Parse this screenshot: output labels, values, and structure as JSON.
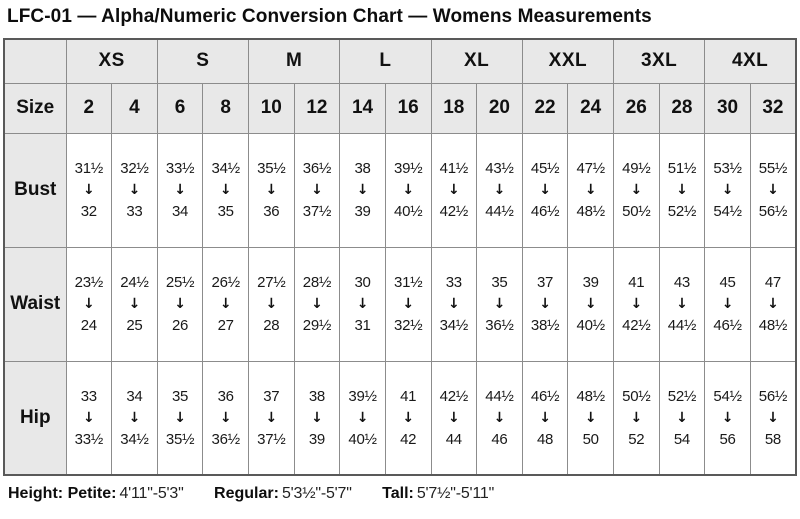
{
  "title": "LFC-01 — Alpha/Numeric Conversion Chart — Womens Measurements",
  "colors": {
    "header_bg": "#e8e8e8",
    "inner_border": "#8c8c8c",
    "outer_border": "#595959",
    "text": "#111111",
    "background": "#ffffff"
  },
  "icons": {
    "down_arrow": "↓"
  },
  "table": {
    "corner_label": "",
    "size_label": "Size",
    "alpha_sizes": [
      "XS",
      "S",
      "M",
      "L",
      "XL",
      "XXL",
      "3XL",
      "4XL"
    ],
    "numeric_sizes": [
      "2",
      "4",
      "6",
      "8",
      "10",
      "12",
      "14",
      "16",
      "18",
      "20",
      "22",
      "24",
      "26",
      "28",
      "30",
      "32"
    ],
    "rows": [
      {
        "label": "Bust",
        "ranges": [
          {
            "from": "31½",
            "to": "32"
          },
          {
            "from": "32½",
            "to": "33"
          },
          {
            "from": "33½",
            "to": "34"
          },
          {
            "from": "34½",
            "to": "35"
          },
          {
            "from": "35½",
            "to": "36"
          },
          {
            "from": "36½",
            "to": "37½"
          },
          {
            "from": "38",
            "to": "39"
          },
          {
            "from": "39½",
            "to": "40½"
          },
          {
            "from": "41½",
            "to": "42½"
          },
          {
            "from": "43½",
            "to": "44½"
          },
          {
            "from": "45½",
            "to": "46½"
          },
          {
            "from": "47½",
            "to": "48½"
          },
          {
            "from": "49½",
            "to": "50½"
          },
          {
            "from": "51½",
            "to": "52½"
          },
          {
            "from": "53½",
            "to": "54½"
          },
          {
            "from": "55½",
            "to": "56½"
          }
        ]
      },
      {
        "label": "Waist",
        "ranges": [
          {
            "from": "23½",
            "to": "24"
          },
          {
            "from": "24½",
            "to": "25"
          },
          {
            "from": "25½",
            "to": "26"
          },
          {
            "from": "26½",
            "to": "27"
          },
          {
            "from": "27½",
            "to": "28"
          },
          {
            "from": "28½",
            "to": "29½"
          },
          {
            "from": "30",
            "to": "31"
          },
          {
            "from": "31½",
            "to": "32½"
          },
          {
            "from": "33",
            "to": "34½"
          },
          {
            "from": "35",
            "to": "36½"
          },
          {
            "from": "37",
            "to": "38½"
          },
          {
            "from": "39",
            "to": "40½"
          },
          {
            "from": "41",
            "to": "42½"
          },
          {
            "from": "43",
            "to": "44½"
          },
          {
            "from": "45",
            "to": "46½"
          },
          {
            "from": "47",
            "to": "48½"
          }
        ]
      },
      {
        "label": "Hip",
        "ranges": [
          {
            "from": "33",
            "to": "33½"
          },
          {
            "from": "34",
            "to": "34½"
          },
          {
            "from": "35",
            "to": "35½"
          },
          {
            "from": "36",
            "to": "36½"
          },
          {
            "from": "37",
            "to": "37½"
          },
          {
            "from": "38",
            "to": "39"
          },
          {
            "from": "39½",
            "to": "40½"
          },
          {
            "from": "41",
            "to": "42"
          },
          {
            "from": "42½",
            "to": "44"
          },
          {
            "from": "44½",
            "to": "46"
          },
          {
            "from": "46½",
            "to": "48"
          },
          {
            "from": "48½",
            "to": "50"
          },
          {
            "from": "50½",
            "to": "52"
          },
          {
            "from": "52½",
            "to": "54"
          },
          {
            "from": "54½",
            "to": "56"
          },
          {
            "from": "56½",
            "to": "58"
          }
        ]
      }
    ]
  },
  "footer": {
    "height_label": "Height:",
    "entries": [
      {
        "label": "Petite:",
        "value": "4'11\"-5'3\""
      },
      {
        "label": "Regular:",
        "value": "5'3½\"-5'7\""
      },
      {
        "label": "Tall:",
        "value": "5'7½\"-5'11\""
      }
    ]
  }
}
